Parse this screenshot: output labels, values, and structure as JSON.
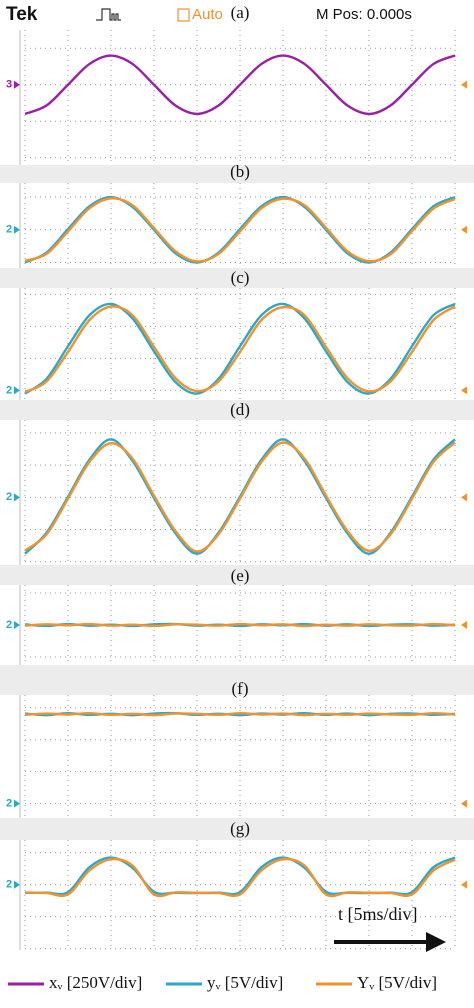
{
  "header": {
    "brand": "Tek",
    "trigger": "Auto",
    "position": "M Pos: 0.000s"
  },
  "time_scale": "t [5ms/div]",
  "chart_data": [
    {
      "type": "line",
      "label": "(a)",
      "channel": "3",
      "xlim": [
        0,
        10
      ],
      "ylim": [
        -2.2,
        1.5
      ],
      "grid": true,
      "x": [
        0,
        0.5,
        1,
        1.5,
        2,
        2.5,
        3,
        3.5,
        4,
        4.5,
        5,
        5.5,
        6,
        6.5,
        7,
        7.5,
        8,
        8.5,
        9,
        9.5,
        10
      ],
      "series": [
        {
          "name": "xᵥ [250V/div]",
          "color": "#9b1fa6",
          "values": [
            -0.8,
            -0.57,
            0,
            0.57,
            0.8,
            0.57,
            0,
            -0.57,
            -0.8,
            -0.57,
            0,
            0.57,
            0.8,
            0.57,
            0,
            -0.57,
            -0.8,
            -0.57,
            0,
            0.57,
            0.8
          ]
        }
      ]
    },
    {
      "type": "line",
      "label": "(b)",
      "channel": "2",
      "xlim": [
        0,
        10
      ],
      "ylim": [
        -1.17,
        1.43
      ],
      "grid": true,
      "x": [
        0,
        0.5,
        1,
        1.5,
        2,
        2.5,
        3,
        3.5,
        4,
        4.5,
        5,
        5.5,
        6,
        6.5,
        7,
        7.5,
        8,
        8.5,
        9,
        9.5,
        10
      ],
      "series": [
        {
          "name": "yᵥ [5V/div]",
          "color": "#2ba8c6",
          "values": [
            -1,
            -0.7,
            0.02,
            0.72,
            1,
            0.7,
            0,
            -0.72,
            -1,
            -0.7,
            0.02,
            0.72,
            1,
            0.7,
            0,
            -0.72,
            -1,
            -0.7,
            0.02,
            0.72,
            1
          ]
        },
        {
          "name": "Yᵥ [5V/div]",
          "color": "#f0922e",
          "values": [
            -0.95,
            -0.74,
            -0.05,
            0.66,
            0.96,
            0.75,
            0.05,
            -0.66,
            -0.97,
            -0.74,
            -0.05,
            0.66,
            0.95,
            0.75,
            0.06,
            -0.66,
            -0.96,
            -0.75,
            -0.04,
            0.65,
            0.94
          ]
        }
      ]
    },
    {
      "type": "line",
      "label": "(c)",
      "channel": "2",
      "xlim": [
        0,
        10
      ],
      "ylim": [
        -0.3,
        3.2
      ],
      "grid": true,
      "x": [
        0,
        0.5,
        1,
        1.5,
        2,
        2.5,
        3,
        3.5,
        4,
        4.5,
        5,
        5.5,
        6,
        6.5,
        7,
        7.5,
        8,
        8.5,
        9,
        9.5,
        10
      ],
      "series": [
        {
          "color": "#2ba8c6",
          "values": [
            -0.1,
            0.36,
            1.38,
            2.35,
            2.7,
            2.25,
            1.22,
            0.26,
            -0.1,
            0.36,
            1.38,
            2.35,
            2.7,
            2.25,
            1.22,
            0.26,
            -0.1,
            0.36,
            1.38,
            2.35,
            2.7
          ]
        },
        {
          "color": "#f0922e",
          "values": [
            -0.05,
            0.28,
            1.2,
            2.2,
            2.62,
            2.35,
            1.36,
            0.38,
            -0.02,
            0.28,
            1.2,
            2.2,
            2.6,
            2.35,
            1.36,
            0.38,
            -0.03,
            0.28,
            1.2,
            2.2,
            2.62
          ]
        }
      ]
    },
    {
      "type": "line",
      "label": "(d)",
      "channel": "2",
      "xlim": [
        0,
        10
      ],
      "ylim": [
        -2.1,
        2.4
      ],
      "grid": true,
      "x": [
        0,
        0.5,
        1,
        1.5,
        2,
        2.5,
        3,
        3.5,
        4,
        4.5,
        5,
        5.5,
        6,
        6.5,
        7,
        7.5,
        8,
        8.5,
        9,
        9.5,
        10
      ],
      "series": [
        {
          "color": "#2ba8c6",
          "values": [
            -1.75,
            -1.1,
            0.02,
            1.17,
            1.8,
            1.13,
            -0.02,
            -1.12,
            -1.75,
            -1.1,
            0.02,
            1.17,
            1.8,
            1.13,
            -0.02,
            -1.12,
            -1.75,
            -1.1,
            0.02,
            1.17,
            1.8
          ]
        },
        {
          "color": "#f0922e",
          "values": [
            -1.65,
            -1.15,
            -0.04,
            1.1,
            1.68,
            1.2,
            0.05,
            -1.05,
            -1.68,
            -1.15,
            -0.04,
            1.1,
            1.7,
            1.2,
            0.05,
            -1.05,
            -1.66,
            -1.15,
            -0.04,
            1.1,
            1.7
          ]
        }
      ]
    },
    {
      "type": "line",
      "label": "(e)",
      "channel": "2",
      "xlim": [
        0,
        10
      ],
      "ylim": [
        -1.25,
        1.25
      ],
      "grid": true,
      "x": [
        0,
        0.5,
        1,
        1.5,
        2,
        2.5,
        3,
        3.5,
        4,
        4.5,
        5,
        5.5,
        6,
        6.5,
        7,
        7.5,
        8,
        8.5,
        9,
        9.5,
        10
      ],
      "series": [
        {
          "color": "#2ba8c6",
          "values": [
            0.02,
            -0.03,
            0.03,
            -0.02,
            0.01,
            -0.03,
            0.02,
            0.03,
            -0.02,
            0.01,
            -0.03,
            0.02,
            -0.01,
            0.03,
            -0.02,
            0.02,
            -0.03,
            0.01,
            0.02,
            -0.02,
            0.01
          ]
        },
        {
          "color": "#f0922e",
          "values": [
            -0.02,
            0.02,
            -0.01,
            0.03,
            -0.02,
            0.01,
            -0.03,
            0.02,
            0.01,
            -0.02,
            0.03,
            -0.01,
            0.02,
            -0.03,
            0.01,
            -0.02,
            0.02,
            -0.01,
            -0.02,
            0.03,
            -0.01
          ]
        }
      ]
    },
    {
      "type": "line",
      "label": "(f)",
      "channel": "2",
      "xlim": [
        0,
        10
      ],
      "ylim": [
        -0.45,
        3.4
      ],
      "grid": true,
      "x": [
        0,
        0.5,
        1,
        1.5,
        2,
        2.5,
        3,
        3.5,
        4,
        4.5,
        5,
        5.5,
        6,
        6.5,
        7,
        7.5,
        8,
        8.5,
        9,
        9.5,
        10
      ],
      "series": [
        {
          "color": "#2ba8c6",
          "values": [
            2.82,
            2.77,
            2.83,
            2.78,
            2.81,
            2.77,
            2.82,
            2.83,
            2.78,
            2.81,
            2.77,
            2.82,
            2.79,
            2.83,
            2.78,
            2.82,
            2.77,
            2.81,
            2.82,
            2.78,
            2.81
          ]
        },
        {
          "color": "#f0922e",
          "values": [
            2.78,
            2.82,
            2.79,
            2.83,
            2.78,
            2.81,
            2.77,
            2.82,
            2.81,
            2.78,
            2.83,
            2.79,
            2.82,
            2.77,
            2.81,
            2.78,
            2.82,
            2.79,
            2.78,
            2.83,
            2.79
          ]
        }
      ]
    },
    {
      "type": "line",
      "label": "(g)",
      "channel": "2",
      "xlim": [
        0,
        10
      ],
      "ylim": [
        -2.04,
        1.4
      ],
      "grid": true,
      "x": [
        0,
        0.5,
        1,
        1.5,
        2,
        2.5,
        3,
        3.5,
        4,
        4.5,
        5,
        5.5,
        6,
        6.5,
        7,
        7.5,
        8,
        8.5,
        9,
        9.5,
        10
      ],
      "series": [
        {
          "color": "#2ba8c6",
          "values": [
            -0.25,
            -0.25,
            -0.23,
            0.55,
            0.85,
            0.53,
            -0.22,
            -0.25,
            -0.26,
            -0.25,
            -0.23,
            0.55,
            0.85,
            0.53,
            -0.22,
            -0.25,
            -0.26,
            -0.25,
            -0.23,
            0.55,
            0.85
          ]
        },
        {
          "color": "#f0922e",
          "values": [
            -0.24,
            -0.26,
            -0.3,
            0.45,
            0.8,
            0.6,
            -0.3,
            -0.24,
            -0.25,
            -0.26,
            -0.3,
            0.45,
            0.8,
            0.6,
            -0.3,
            -0.24,
            -0.25,
            -0.26,
            -0.3,
            0.45,
            0.78
          ]
        }
      ]
    }
  ]
}
